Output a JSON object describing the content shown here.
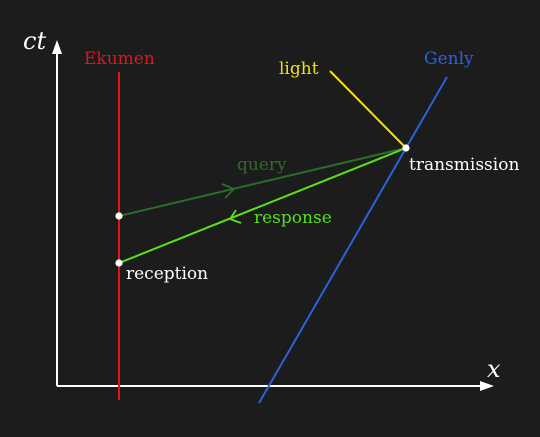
{
  "colors": {
    "background": "#1c1c1c",
    "axes": "#ffffff",
    "ekumen": "#e0151c",
    "genly": "#2a62d8",
    "light": "#f2e20f",
    "query": "#2a6e28",
    "response": "#58e01a",
    "event_point": "#ffffff",
    "label_text": "#ffffff"
  },
  "axes": {
    "y_label": "ct",
    "x_label": "x"
  },
  "worldlines": {
    "ekumen_label": "Ekumen",
    "genly_label": "Genly"
  },
  "signals": {
    "light_label": "light",
    "query_label": "query",
    "response_label": "response"
  },
  "events": {
    "transmission_label": "transmission",
    "reception_label": "reception"
  }
}
